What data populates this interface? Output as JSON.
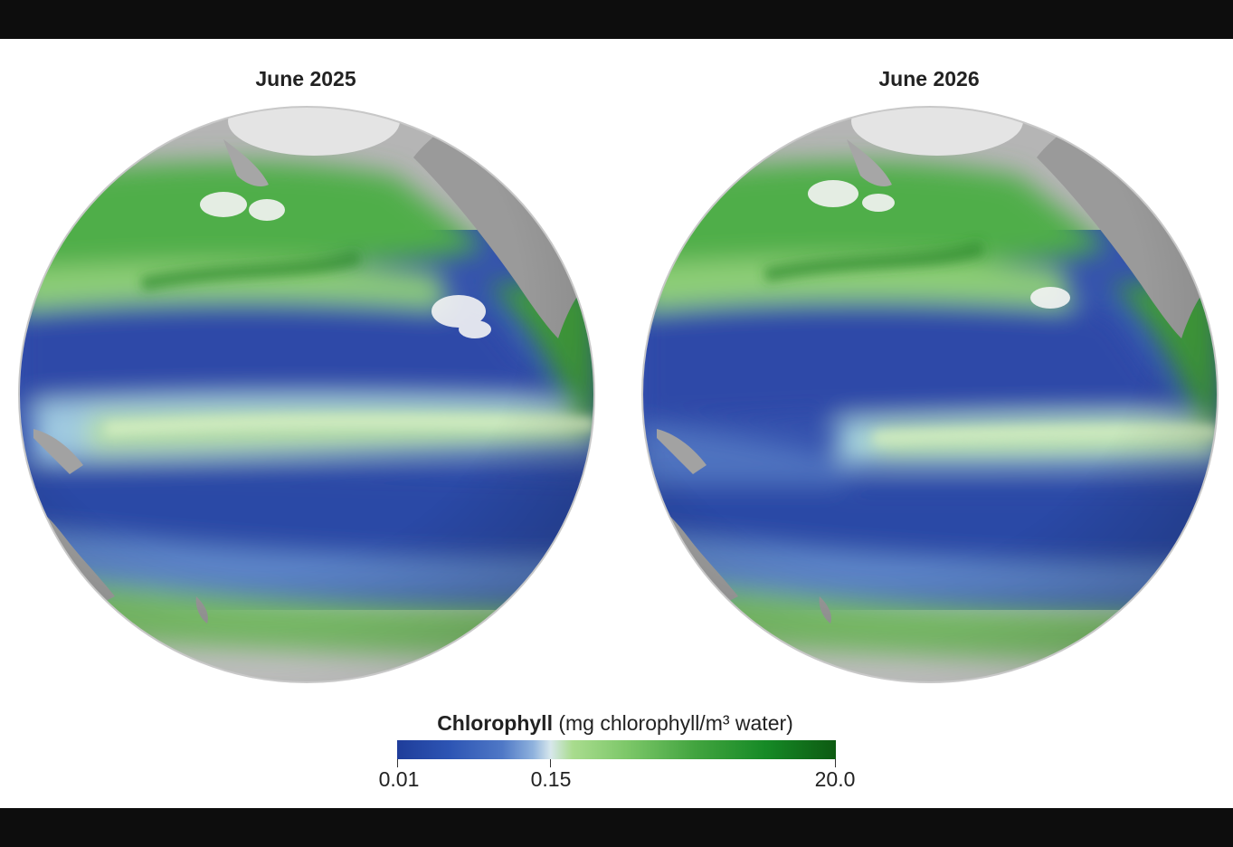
{
  "maps": [
    {
      "title": "June 2025"
    },
    {
      "title": "June 2026"
    }
  ],
  "legend": {
    "title_bold": "Chlorophyll",
    "title_rest": "(mg chlorophyll/m³ water)",
    "ticks": [
      {
        "label": "0.01",
        "value": 0.01
      },
      {
        "label": "0.15",
        "value": 0.15
      },
      {
        "label": "20.0",
        "value": 20.0
      }
    ],
    "colors": [
      "#1f3d9a",
      "#2d55b4",
      "#8fb2dd",
      "#d7e7ec",
      "#a9dc8e",
      "#42a43f",
      "#0d5a12"
    ]
  },
  "palette": {
    "land": "#9b9b9b",
    "ice": "#e2e2e2",
    "ocean_low": "#2f4fae",
    "ocean_mid": "#a9cfe0",
    "ocean_high": "#3e9a3a"
  }
}
